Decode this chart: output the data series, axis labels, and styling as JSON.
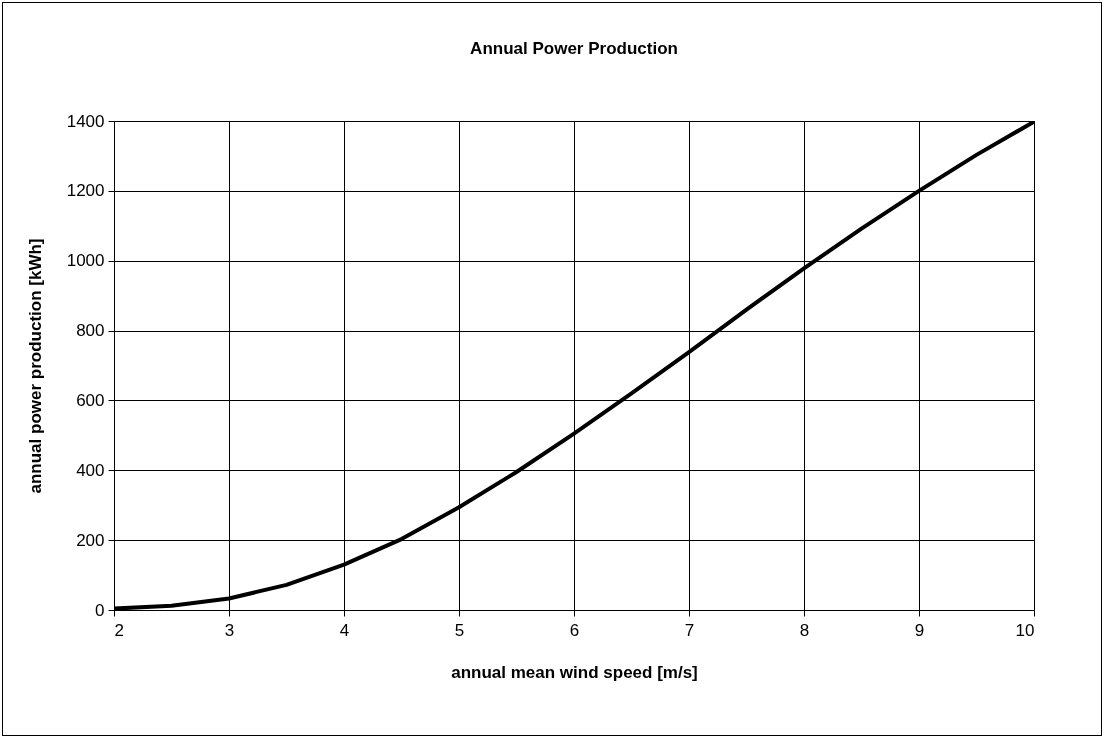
{
  "chart_data": {
    "type": "line",
    "title": "Annual Power Production",
    "xlabel": "annual mean wind speed  [m/s]",
    "ylabel": "annual power production   [kWh]",
    "x": [
      2,
      2.5,
      3,
      3.5,
      4,
      4.5,
      5,
      5.5,
      6,
      6.5,
      7,
      7.5,
      8,
      8.5,
      9,
      9.5,
      10
    ],
    "series": [
      {
        "color": "#000000",
        "values": [
          4,
          12,
          33,
          72,
          130,
          203,
          294,
          395,
          505,
          620,
          738,
          860,
          978,
          1092,
          1200,
          1303,
          1398
        ]
      }
    ],
    "xlim": [
      2,
      10
    ],
    "xticks": [
      2,
      3,
      4,
      5,
      6,
      7,
      8,
      9,
      10
    ],
    "ylim": [
      0,
      1400
    ],
    "yticks": [
      0,
      200,
      400,
      600,
      800,
      1000,
      1200,
      1400
    ],
    "grid": true,
    "line_style": "solid",
    "marker": "none"
  }
}
